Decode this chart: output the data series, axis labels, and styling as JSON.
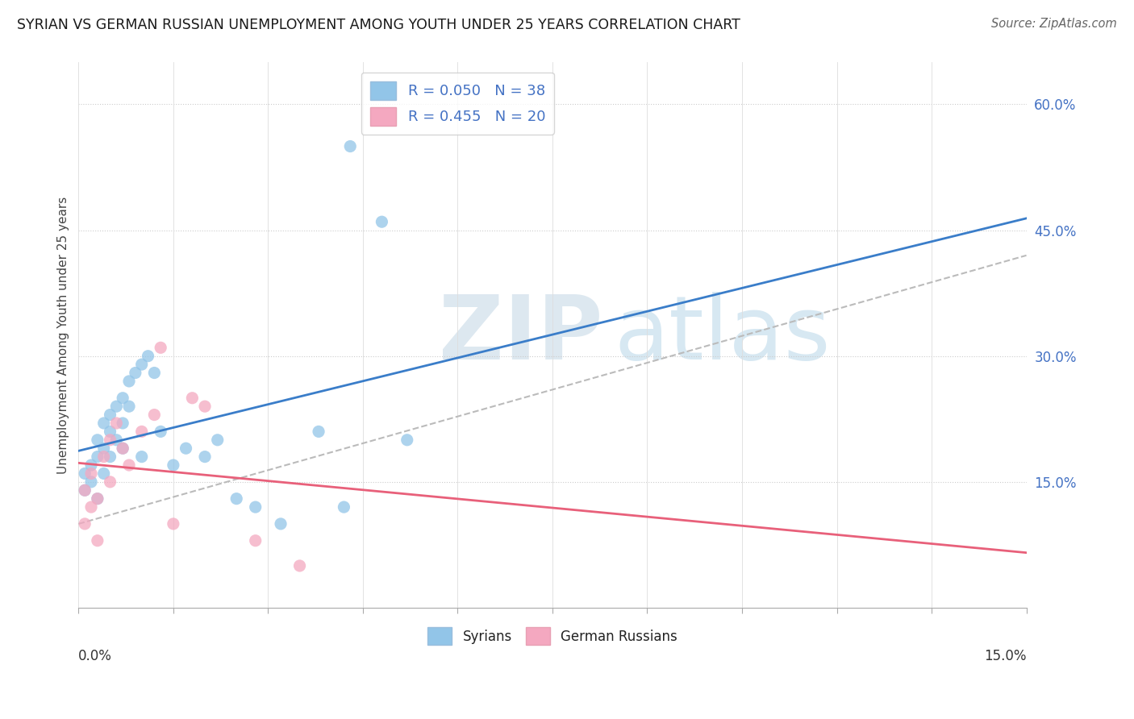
{
  "title": "SYRIAN VS GERMAN RUSSIAN UNEMPLOYMENT AMONG YOUTH UNDER 25 YEARS CORRELATION CHART",
  "source": "Source: ZipAtlas.com",
  "ylabel": "Unemployment Among Youth under 25 years",
  "xlim": [
    0,
    0.15
  ],
  "ylim": [
    0,
    0.65
  ],
  "yticks_right": [
    0.15,
    0.3,
    0.45,
    0.6
  ],
  "ytick_labels_right": [
    "15.0%",
    "30.0%",
    "45.0%",
    "60.0%"
  ],
  "legend_r1": "R = 0.050",
  "legend_n1": "N = 38",
  "legend_r2": "R = 0.455",
  "legend_n2": "N = 20",
  "legend_label1": "Syrians",
  "legend_label2": "German Russians",
  "blue_color": "#92c5e8",
  "pink_color": "#f4a8c0",
  "blue_line_color": "#3a7dc9",
  "pink_line_color": "#e8607a",
  "gray_dash_color": "#bbbbbb",
  "syrians_x": [
    0.001,
    0.001,
    0.002,
    0.002,
    0.003,
    0.003,
    0.003,
    0.004,
    0.004,
    0.004,
    0.005,
    0.005,
    0.005,
    0.006,
    0.006,
    0.007,
    0.007,
    0.007,
    0.008,
    0.008,
    0.009,
    0.01,
    0.01,
    0.011,
    0.012,
    0.013,
    0.015,
    0.017,
    0.02,
    0.022,
    0.025,
    0.028,
    0.032,
    0.038,
    0.042,
    0.043,
    0.048,
    0.052
  ],
  "syrians_y": [
    0.14,
    0.16,
    0.15,
    0.17,
    0.18,
    0.2,
    0.13,
    0.19,
    0.22,
    0.16,
    0.21,
    0.23,
    0.18,
    0.24,
    0.2,
    0.25,
    0.22,
    0.19,
    0.27,
    0.24,
    0.28,
    0.29,
    0.18,
    0.3,
    0.28,
    0.21,
    0.17,
    0.19,
    0.18,
    0.2,
    0.13,
    0.12,
    0.1,
    0.21,
    0.12,
    0.55,
    0.46,
    0.2
  ],
  "german_russians_x": [
    0.001,
    0.001,
    0.002,
    0.002,
    0.003,
    0.003,
    0.004,
    0.005,
    0.005,
    0.006,
    0.007,
    0.008,
    0.01,
    0.012,
    0.013,
    0.015,
    0.018,
    0.02,
    0.028,
    0.035
  ],
  "german_russians_y": [
    0.1,
    0.14,
    0.12,
    0.16,
    0.13,
    0.08,
    0.18,
    0.2,
    0.15,
    0.22,
    0.19,
    0.17,
    0.21,
    0.23,
    0.31,
    0.1,
    0.25,
    0.24,
    0.08,
    0.05
  ]
}
